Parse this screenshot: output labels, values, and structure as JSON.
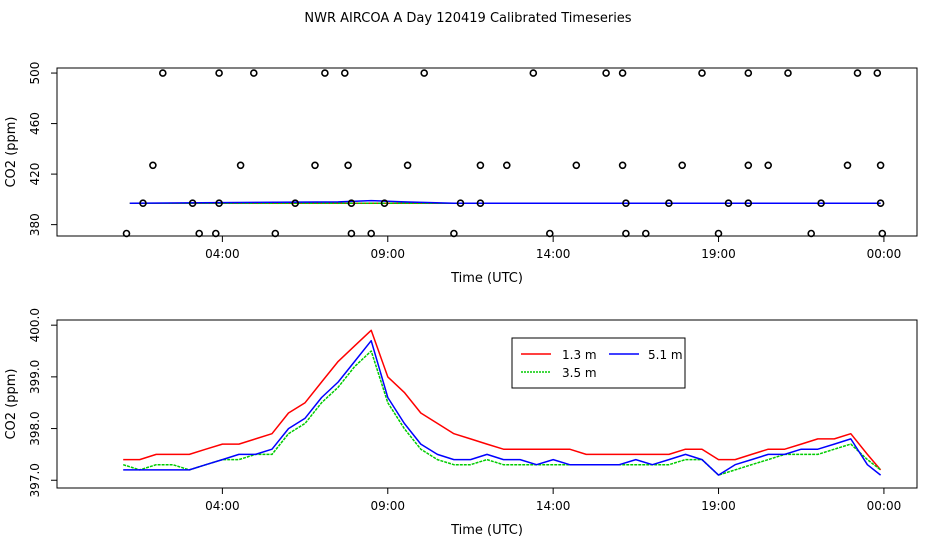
{
  "title": "NWR AIRCOA A  Day 120419  Calibrated Timeseries",
  "chart_data": [
    {
      "type": "scatter",
      "title": "NWR AIRCOA A  Day 120419  Calibrated Timeseries",
      "xlabel": "Time (UTC)",
      "ylabel": "CO2 (ppm)",
      "xticks": [
        4,
        9,
        14,
        19,
        24
      ],
      "xtick_labels": [
        "04:00",
        "09:00",
        "14:00",
        "19:00",
        "00:00"
      ],
      "yticks": [
        380,
        420,
        460,
        500
      ],
      "ytick_labels": [
        "380",
        "420",
        "460",
        "500"
      ],
      "xlim": [
        -1.0,
        25.0
      ],
      "ylim": [
        371,
        504
      ],
      "grid": false,
      "points": [
        [
          1.1,
          373
        ],
        [
          2.2,
          500
        ],
        [
          3.3,
          373
        ],
        [
          3.8,
          373
        ],
        [
          3.9,
          500
        ],
        [
          4.55,
          427
        ],
        [
          4.95,
          500
        ],
        [
          5.6,
          373
        ],
        [
          6.8,
          427
        ],
        [
          7.1,
          500
        ],
        [
          7.7,
          500
        ],
        [
          7.8,
          427
        ],
        [
          7.9,
          373
        ],
        [
          8.5,
          373
        ],
        [
          9.6,
          427
        ],
        [
          10.1,
          500
        ],
        [
          11.0,
          373
        ],
        [
          12.6,
          427
        ],
        [
          13.4,
          500
        ],
        [
          13.9,
          373
        ],
        [
          14.7,
          427
        ],
        [
          15.6,
          500
        ],
        [
          16.1,
          500
        ],
        [
          16.1,
          427
        ],
        [
          16.2,
          373
        ],
        [
          16.8,
          373
        ],
        [
          17.9,
          427
        ],
        [
          18.5,
          500
        ],
        [
          19.0,
          373
        ],
        [
          19.9,
          500
        ],
        [
          19.9,
          427
        ],
        [
          20.5,
          427
        ],
        [
          21.1,
          500
        ],
        [
          21.8,
          373
        ],
        [
          22.9,
          427
        ],
        [
          23.2,
          500
        ],
        [
          23.8,
          500
        ],
        [
          23.9,
          427
        ],
        [
          23.95,
          373
        ],
        [
          1.9,
          427
        ],
        [
          1.6,
          397
        ],
        [
          3.1,
          397
        ],
        [
          3.9,
          397
        ],
        [
          6.2,
          397
        ],
        [
          7.9,
          397
        ],
        [
          8.9,
          397
        ],
        [
          11.2,
          397
        ],
        [
          11.8,
          397
        ],
        [
          11.8,
          427
        ],
        [
          16.2,
          397
        ],
        [
          17.5,
          397
        ],
        [
          19.3,
          397
        ],
        [
          19.9,
          397
        ],
        [
          22.1,
          397
        ],
        [
          23.9,
          397
        ]
      ],
      "series": [
        {
          "name": "1.3 m",
          "color": "#ff0000",
          "points": [
            [
              1.2,
              397.0
            ],
            [
              23.9,
              397.0
            ]
          ]
        },
        {
          "name": "3.5 m",
          "color": "#00cc00",
          "points": [
            [
              1.2,
              397.0
            ],
            [
              23.9,
              397.0
            ]
          ]
        },
        {
          "name": "5.1 m",
          "color": "#0000ff",
          "points": [
            [
              1.2,
              397.0
            ],
            [
              7.5,
              398.0
            ],
            [
              8.5,
              399.0
            ],
            [
              9.5,
              398.0
            ],
            [
              11.0,
              397.0
            ],
            [
              23.9,
              397.0
            ]
          ]
        }
      ]
    },
    {
      "type": "line",
      "xlabel": "Time (UTC)",
      "ylabel": "CO2 (ppm)",
      "xticks": [
        4,
        9,
        14,
        19,
        24
      ],
      "xtick_labels": [
        "04:00",
        "09:00",
        "14:00",
        "19:00",
        "00:00"
      ],
      "yticks": [
        397.0,
        398.0,
        399.0,
        400.0
      ],
      "ytick_labels": [
        "397.0",
        "398.0",
        "399.0",
        "400.0"
      ],
      "xlim": [
        -1.0,
        25.0
      ],
      "ylim": [
        396.85,
        400.1
      ],
      "grid": false,
      "legend": {
        "position": "top-center",
        "entries": [
          "1.3 m",
          "5.1 m",
          "3.5 m"
        ]
      },
      "x": [
        1.0,
        1.5,
        2.0,
        2.5,
        3.0,
        3.5,
        4.0,
        4.5,
        5.0,
        5.5,
        6.0,
        6.5,
        7.0,
        7.5,
        8.0,
        8.5,
        9.0,
        9.5,
        10.0,
        10.5,
        11.0,
        11.5,
        12.0,
        12.5,
        13.0,
        13.5,
        14.0,
        14.5,
        15.0,
        15.5,
        16.0,
        16.5,
        17.0,
        17.5,
        18.0,
        18.5,
        19.0,
        19.5,
        20.0,
        20.5,
        21.0,
        21.5,
        22.0,
        22.5,
        23.0,
        23.5,
        23.9
      ],
      "series": [
        {
          "name": "1.3 m",
          "color": "#ff0000",
          "values": [
            397.4,
            397.4,
            397.5,
            397.5,
            397.5,
            397.6,
            397.7,
            397.7,
            397.8,
            397.9,
            398.3,
            398.5,
            398.9,
            399.3,
            399.6,
            399.9,
            399.0,
            398.7,
            398.3,
            398.1,
            397.9,
            397.8,
            397.7,
            397.6,
            397.6,
            397.6,
            397.6,
            397.6,
            397.5,
            397.5,
            397.5,
            397.5,
            397.5,
            397.5,
            397.6,
            397.6,
            397.4,
            397.4,
            397.5,
            397.6,
            397.6,
            397.7,
            397.8,
            397.8,
            397.9,
            397.5,
            397.2
          ]
        },
        {
          "name": "3.5 m",
          "color": "#00cc00",
          "values": [
            397.3,
            397.2,
            397.3,
            397.3,
            397.2,
            397.3,
            397.4,
            397.4,
            397.5,
            397.5,
            397.9,
            398.1,
            398.5,
            398.8,
            399.2,
            399.5,
            398.5,
            398.0,
            397.6,
            397.4,
            397.3,
            397.3,
            397.4,
            397.3,
            397.3,
            397.3,
            397.3,
            397.3,
            397.3,
            397.3,
            397.3,
            397.3,
            397.3,
            397.3,
            397.4,
            397.4,
            397.1,
            397.2,
            397.3,
            397.4,
            397.5,
            397.5,
            397.5,
            397.6,
            397.7,
            397.4,
            397.2
          ]
        },
        {
          "name": "5.1 m",
          "color": "#0000ff",
          "values": [
            397.2,
            397.2,
            397.2,
            397.2,
            397.2,
            397.3,
            397.4,
            397.5,
            397.5,
            397.6,
            398.0,
            398.2,
            398.6,
            398.9,
            399.3,
            399.7,
            398.6,
            398.1,
            397.7,
            397.5,
            397.4,
            397.4,
            397.5,
            397.4,
            397.4,
            397.3,
            397.4,
            397.3,
            397.3,
            397.3,
            397.3,
            397.4,
            397.3,
            397.4,
            397.5,
            397.4,
            397.1,
            397.3,
            397.4,
            397.5,
            397.5,
            397.6,
            397.6,
            397.7,
            397.8,
            397.3,
            397.1
          ]
        }
      ]
    }
  ]
}
